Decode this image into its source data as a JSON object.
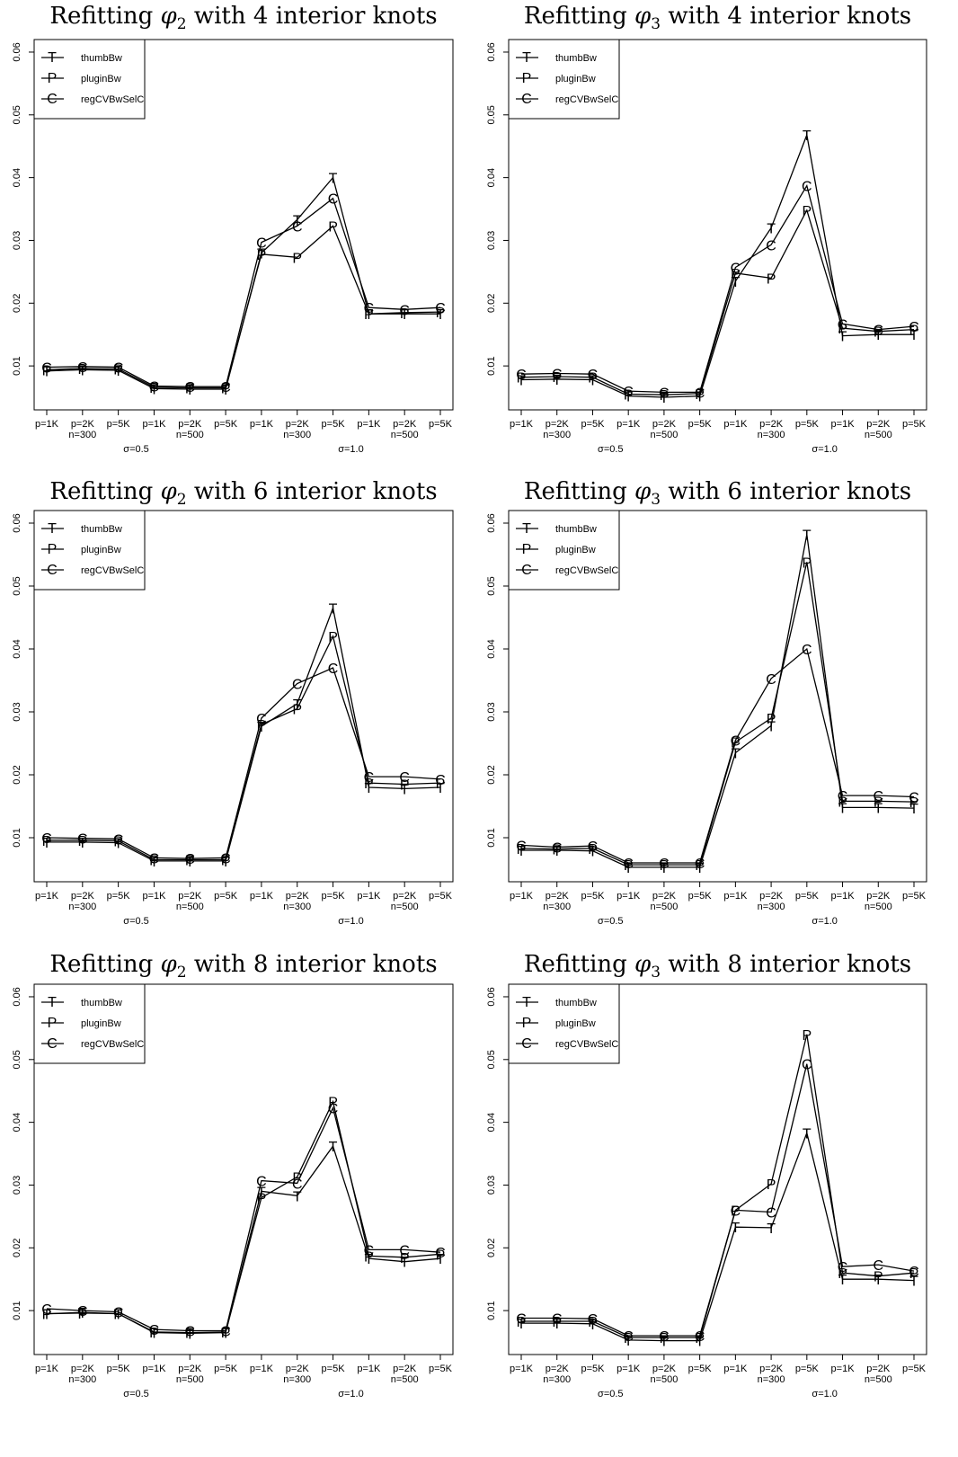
{
  "chart_data": [
    {
      "type": "line",
      "title": {
        "prefix": "Refitting ",
        "symbol": "φ",
        "sub": "2",
        "suffix": " with 4 interior knots"
      },
      "categories": [
        "p=1K",
        "p=2K",
        "p=5K",
        "p=1K",
        "p=2K",
        "p=5K",
        "p=1K",
        "p=2K",
        "p=5K",
        "p=1K",
        "p=2K",
        "p=5K"
      ],
      "group_labels": [
        "n=300",
        "n=500",
        "n=300",
        "n=500"
      ],
      "sigma_labels": [
        "σ=0.5",
        "σ=1.0"
      ],
      "yticks": [
        0.01,
        0.02,
        0.03,
        0.04,
        0.05,
        0.06
      ],
      "ytick_labels": [
        "0.01",
        "0.02",
        "0.03",
        "0.04",
        "0.05",
        "0.06"
      ],
      "ylim": [
        0.003,
        0.062
      ],
      "legend_position": "top-left",
      "series": [
        {
          "name": "thumbBw",
          "marker": "T",
          "values": [
            0.0092,
            0.0094,
            0.0093,
            0.0064,
            0.0063,
            0.0063,
            0.028,
            0.0333,
            0.04,
            0.0183,
            0.0183,
            0.0183
          ]
        },
        {
          "name": "pluginBw",
          "marker": "P",
          "values": [
            0.0094,
            0.0096,
            0.0095,
            0.0066,
            0.0065,
            0.0065,
            0.0278,
            0.0273,
            0.0323,
            0.0183,
            0.0185,
            0.0186
          ]
        },
        {
          "name": "regCVBwSelC",
          "marker": "C",
          "values": [
            0.0098,
            0.0099,
            0.0098,
            0.0068,
            0.0067,
            0.0067,
            0.0297,
            0.0323,
            0.0367,
            0.0193,
            0.019,
            0.0193
          ]
        }
      ]
    },
    {
      "type": "line",
      "title": {
        "prefix": "Refitting ",
        "symbol": "φ",
        "sub": "3",
        "suffix": " with 4 interior knots"
      },
      "categories": [
        "p=1K",
        "p=2K",
        "p=5K",
        "p=1K",
        "p=2K",
        "p=5K",
        "p=1K",
        "p=2K",
        "p=5K",
        "p=1K",
        "p=2K",
        "p=5K"
      ],
      "group_labels": [
        "n=300",
        "n=500",
        "n=300",
        "n=500"
      ],
      "sigma_labels": [
        "σ=0.5",
        "σ=1.0"
      ],
      "yticks": [
        0.01,
        0.02,
        0.03,
        0.04,
        0.05,
        0.06
      ],
      "ytick_labels": [
        "0.01",
        "0.02",
        "0.03",
        "0.04",
        "0.05",
        "0.06"
      ],
      "ylim": [
        0.003,
        0.062
      ],
      "legend_position": "top-left",
      "series": [
        {
          "name": "thumbBw",
          "marker": "T",
          "values": [
            0.0078,
            0.0079,
            0.0078,
            0.0052,
            0.005,
            0.0052,
            0.0235,
            0.032,
            0.0468,
            0.0148,
            0.015,
            0.015
          ]
        },
        {
          "name": "pluginBw",
          "marker": "P",
          "values": [
            0.0082,
            0.0083,
            0.0082,
            0.0055,
            0.0054,
            0.0056,
            0.0248,
            0.024,
            0.0348,
            0.016,
            0.0155,
            0.0158
          ]
        },
        {
          "name": "regCVBwSelC",
          "marker": "C",
          "values": [
            0.0087,
            0.0088,
            0.0087,
            0.006,
            0.0058,
            0.0058,
            0.0257,
            0.0293,
            0.0387,
            0.0167,
            0.0158,
            0.0163
          ]
        }
      ]
    },
    {
      "type": "line",
      "title": {
        "prefix": "Refitting ",
        "symbol": "φ",
        "sub": "2",
        "suffix": " with 6 interior knots"
      },
      "categories": [
        "p=1K",
        "p=2K",
        "p=5K",
        "p=1K",
        "p=2K",
        "p=5K",
        "p=1K",
        "p=2K",
        "p=5K",
        "p=1K",
        "p=2K",
        "p=5K"
      ],
      "group_labels": [
        "n=300",
        "n=500",
        "n=300",
        "n=500"
      ],
      "sigma_labels": [
        "σ=0.5",
        "σ=1.0"
      ],
      "yticks": [
        0.01,
        0.02,
        0.03,
        0.04,
        0.05,
        0.06
      ],
      "ytick_labels": [
        "0.01",
        "0.02",
        "0.03",
        "0.04",
        "0.05",
        "0.06"
      ],
      "ylim": [
        0.003,
        0.062
      ],
      "legend_position": "top-left",
      "series": [
        {
          "name": "thumbBw",
          "marker": "T",
          "values": [
            0.0093,
            0.0093,
            0.0092,
            0.0063,
            0.0063,
            0.0063,
            0.0277,
            0.0313,
            0.0465,
            0.018,
            0.0178,
            0.018
          ]
        },
        {
          "name": "pluginBw",
          "marker": "P",
          "values": [
            0.0096,
            0.0096,
            0.0095,
            0.0065,
            0.0065,
            0.0065,
            0.028,
            0.0305,
            0.042,
            0.0187,
            0.0185,
            0.0187
          ]
        },
        {
          "name": "regCVBwSelC",
          "marker": "C",
          "values": [
            0.01,
            0.0099,
            0.0098,
            0.0068,
            0.0067,
            0.0068,
            0.029,
            0.0345,
            0.037,
            0.0197,
            0.0197,
            0.0193
          ]
        }
      ]
    },
    {
      "type": "line",
      "title": {
        "prefix": "Refitting ",
        "symbol": "φ",
        "sub": "3",
        "suffix": " with 6 interior knots"
      },
      "categories": [
        "p=1K",
        "p=2K",
        "p=5K",
        "p=1K",
        "p=2K",
        "p=5K",
        "p=1K",
        "p=2K",
        "p=5K",
        "p=1K",
        "p=2K",
        "p=5K"
      ],
      "group_labels": [
        "n=300",
        "n=500",
        "n=300",
        "n=500"
      ],
      "sigma_labels": [
        "σ=0.5",
        "σ=1.0"
      ],
      "yticks": [
        0.01,
        0.02,
        0.03,
        0.04,
        0.05,
        0.06
      ],
      "ytick_labels": [
        "0.01",
        "0.02",
        "0.03",
        "0.04",
        "0.05",
        "0.06"
      ],
      "ylim": [
        0.003,
        0.062
      ],
      "legend_position": "top-left",
      "series": [
        {
          "name": "thumbBw",
          "marker": "T",
          "values": [
            0.008,
            0.008,
            0.0079,
            0.0053,
            0.0053,
            0.0053,
            0.0235,
            0.0278,
            0.0582,
            0.0148,
            0.0148,
            0.0147
          ]
        },
        {
          "name": "pluginBw",
          "marker": "P",
          "values": [
            0.0083,
            0.0082,
            0.0083,
            0.0057,
            0.0057,
            0.0057,
            0.0252,
            0.029,
            0.0538,
            0.0158,
            0.0158,
            0.0157
          ]
        },
        {
          "name": "regCVBwSelC",
          "marker": "C",
          "values": [
            0.0088,
            0.0085,
            0.0087,
            0.006,
            0.006,
            0.006,
            0.0255,
            0.0353,
            0.04,
            0.0167,
            0.0167,
            0.0165
          ]
        }
      ]
    },
    {
      "type": "line",
      "title": {
        "prefix": "Refitting ",
        "symbol": "φ",
        "sub": "2",
        "suffix": " with 8 interior knots"
      },
      "categories": [
        "p=1K",
        "p=2K",
        "p=5K",
        "p=1K",
        "p=2K",
        "p=5K",
        "p=1K",
        "p=2K",
        "p=5K",
        "p=1K",
        "p=2K",
        "p=5K"
      ],
      "group_labels": [
        "n=300",
        "n=500",
        "n=300",
        "n=500"
      ],
      "sigma_labels": [
        "σ=0.5",
        "σ=1.0"
      ],
      "yticks": [
        0.01,
        0.02,
        0.03,
        0.04,
        0.05,
        0.06
      ],
      "ytick_labels": [
        "0.01",
        "0.02",
        "0.03",
        "0.04",
        "0.05",
        "0.06"
      ],
      "ylim": [
        0.003,
        0.062
      ],
      "legend_position": "top-left",
      "series": [
        {
          "name": "thumbBw",
          "marker": "T",
          "values": [
            0.0095,
            0.0097,
            0.0095,
            0.0065,
            0.0064,
            0.0065,
            0.029,
            0.0283,
            0.0362,
            0.0183,
            0.0178,
            0.0183
          ]
        },
        {
          "name": "pluginBw",
          "marker": "P",
          "values": [
            0.0095,
            0.0096,
            0.0095,
            0.0066,
            0.0065,
            0.0066,
            0.028,
            0.0313,
            0.0433,
            0.0187,
            0.0185,
            0.019
          ]
        },
        {
          "name": "regCVBwSelC",
          "marker": "C",
          "values": [
            0.0103,
            0.01,
            0.0098,
            0.007,
            0.0068,
            0.0068,
            0.0307,
            0.0303,
            0.0423,
            0.0197,
            0.0197,
            0.0193
          ]
        }
      ]
    },
    {
      "type": "line",
      "title": {
        "prefix": "Refitting ",
        "symbol": "φ",
        "sub": "3",
        "suffix": " with 8 interior knots"
      },
      "categories": [
        "p=1K",
        "p=2K",
        "p=5K",
        "p=1K",
        "p=2K",
        "p=5K",
        "p=1K",
        "p=2K",
        "p=5K",
        "p=1K",
        "p=2K",
        "p=5K"
      ],
      "group_labels": [
        "n=300",
        "n=500",
        "n=300",
        "n=500"
      ],
      "sigma_labels": [
        "σ=0.5",
        "σ=1.0"
      ],
      "yticks": [
        0.01,
        0.02,
        0.03,
        0.04,
        0.05,
        0.06
      ],
      "ytick_labels": [
        "0.01",
        "0.02",
        "0.03",
        "0.04",
        "0.05",
        "0.06"
      ],
      "ylim": [
        0.003,
        0.062
      ],
      "legend_position": "top-left",
      "series": [
        {
          "name": "thumbBw",
          "marker": "T",
          "values": [
            0.008,
            0.008,
            0.0079,
            0.0053,
            0.0052,
            0.0052,
            0.0233,
            0.0232,
            0.0383,
            0.015,
            0.015,
            0.0148
          ]
        },
        {
          "name": "pluginBw",
          "marker": "P",
          "values": [
            0.0083,
            0.0083,
            0.0083,
            0.0057,
            0.0057,
            0.0057,
            0.026,
            0.0302,
            0.054,
            0.016,
            0.0155,
            0.016
          ]
        },
        {
          "name": "regCVBwSelC",
          "marker": "C",
          "values": [
            0.0088,
            0.0088,
            0.0087,
            0.006,
            0.006,
            0.006,
            0.026,
            0.0257,
            0.0493,
            0.017,
            0.0173,
            0.0163
          ]
        }
      ]
    }
  ]
}
